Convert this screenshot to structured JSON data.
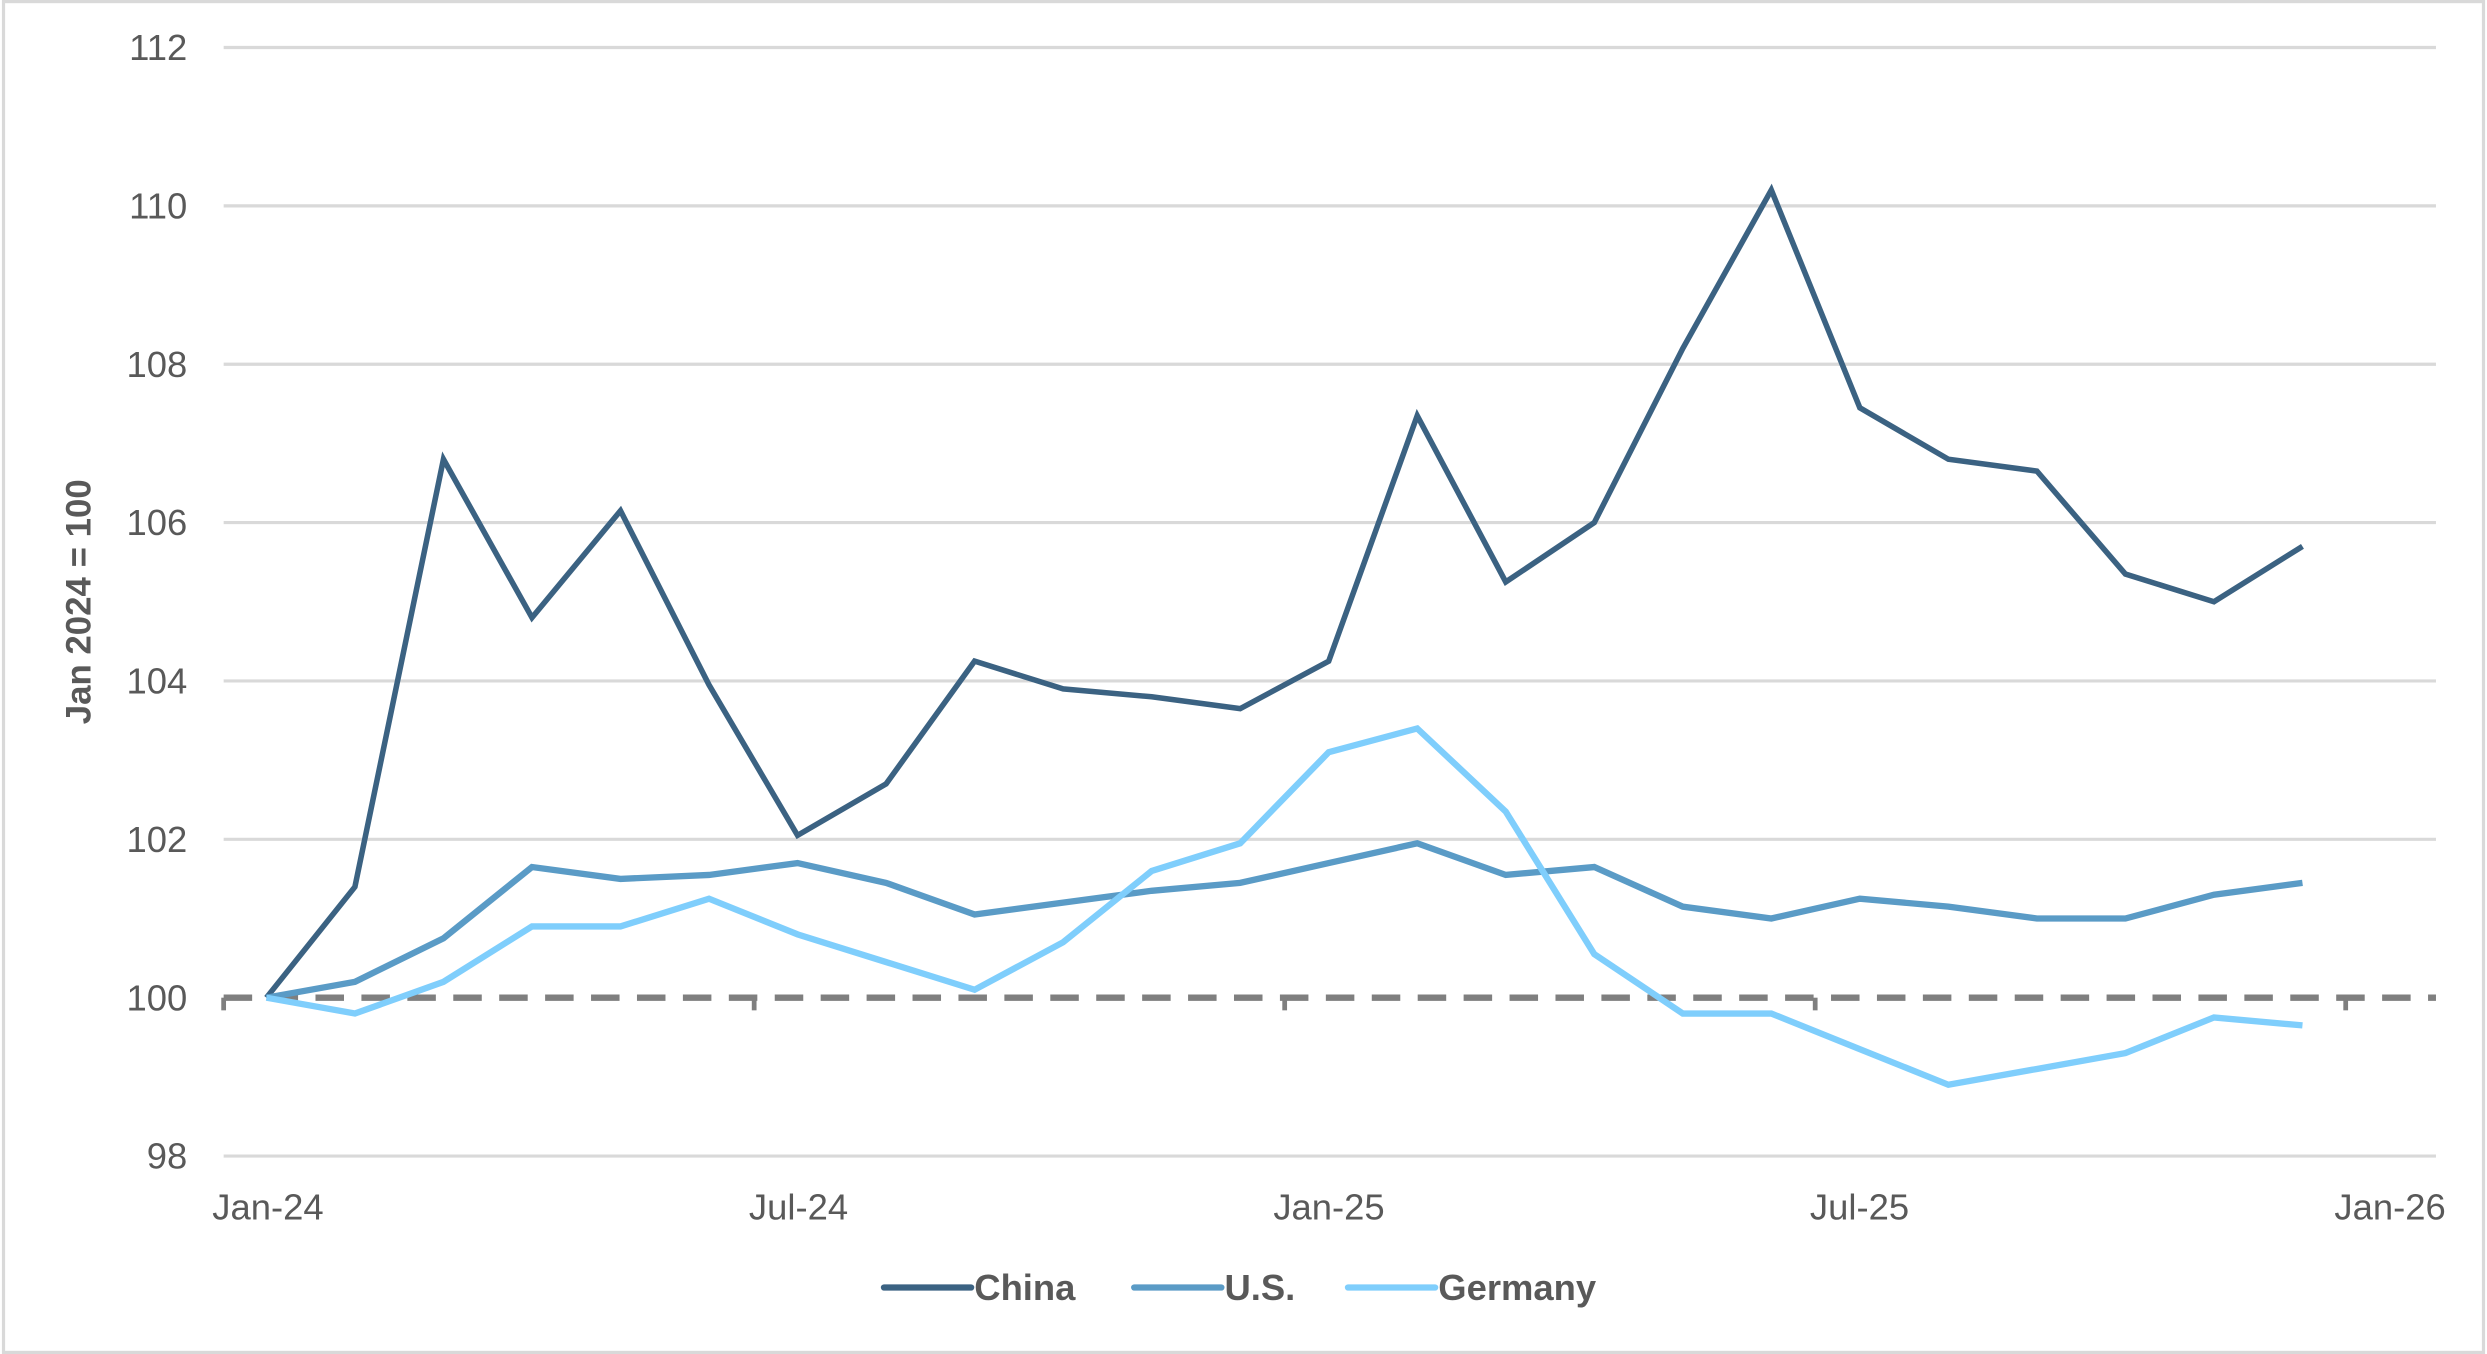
{
  "chart_data": {
    "type": "line",
    "title": "",
    "xlabel": "",
    "ylabel": "Jan 2024 = 100",
    "ylim": [
      98,
      112
    ],
    "yticks": [
      "98",
      "100",
      "102",
      "104",
      "106",
      "108",
      "110",
      "112"
    ],
    "xticks": [
      "Jan-24",
      "Jul-24",
      "Jan-25",
      "Jul-25",
      "Jan-26"
    ],
    "grid": true,
    "legend_position": "bottom",
    "reference_line": {
      "y": 100,
      "style": "dashed",
      "color": "#7f7f7f"
    },
    "x": [
      "Jan-24",
      "Feb-24",
      "Mar-24",
      "Apr-24",
      "May-24",
      "Jun-24",
      "Jul-24",
      "Aug-24",
      "Sep-24",
      "Oct-24",
      "Nov-24",
      "Dec-24",
      "Jan-25",
      "Feb-25",
      "Mar-25",
      "Apr-25",
      "May-25",
      "Jun-25",
      "Jul-25",
      "Aug-25",
      "Sep-25",
      "Oct-25",
      "Nov-25",
      "Dec-25"
    ],
    "series": [
      {
        "name": "China",
        "color": "#3b6282",
        "values": [
          100,
          101.4,
          106.8,
          104.8,
          106.15,
          103.95,
          102.05,
          102.7,
          104.25,
          103.9,
          103.8,
          103.65,
          104.25,
          107.35,
          105.25,
          106.0,
          108.2,
          110.2,
          107.45,
          106.8,
          106.65,
          105.35,
          105.0,
          105.7
        ]
      },
      {
        "name": "U.S.",
        "color": "#5a9bc6",
        "values": [
          100,
          100.2,
          100.75,
          101.65,
          101.5,
          101.55,
          101.7,
          101.45,
          101.05,
          101.2,
          101.35,
          101.45,
          101.7,
          101.95,
          101.55,
          101.65,
          101.15,
          101.0,
          101.25,
          101.15,
          101.0,
          101.0,
          101.3,
          101.45
        ]
      },
      {
        "name": "Germany",
        "color": "#7fcefc",
        "values": [
          100,
          99.8,
          100.2,
          100.9,
          100.9,
          101.25,
          100.8,
          100.45,
          100.1,
          100.7,
          101.6,
          101.95,
          103.1,
          103.4,
          102.35,
          100.55,
          99.8,
          99.8,
          99.35,
          98.9,
          99.1,
          99.3,
          99.75,
          99.65
        ]
      }
    ]
  }
}
